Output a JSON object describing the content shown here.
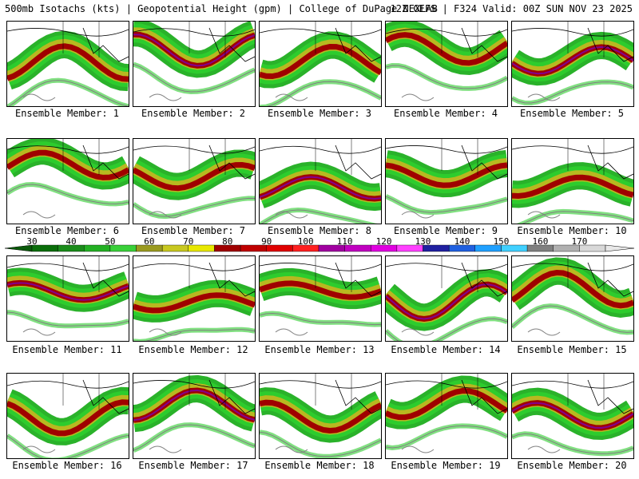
{
  "header": {
    "left": "500mb Isotachs (kts) | Geopotential Height (gpm) | College of DuPage NEXLAB",
    "right": "12Z GEFS | F324 Valid: 00Z SUN NOV 23 2025"
  },
  "colorbar": {
    "labels": [
      "30",
      "40",
      "50",
      "60",
      "70",
      "80",
      "90",
      "100",
      "110",
      "120",
      "130",
      "140",
      "150",
      "160",
      "170"
    ],
    "colors": [
      "#0a6e0a",
      "#1a8c1a",
      "#23b023",
      "#39d039",
      "#9a9a20",
      "#c8c820",
      "#e8e800",
      "#a00000",
      "#c00000",
      "#e00000",
      "#ff2020",
      "#a000a0",
      "#c000c0",
      "#e000e0",
      "#ff40ff",
      "#2020a0",
      "#2060e0",
      "#20a0ff",
      "#40d0ff",
      "#808080",
      "#b0b0b0",
      "#d8d8d8"
    ]
  },
  "members": [
    {
      "label": "Ensemble Member: 1"
    },
    {
      "label": "Ensemble Member: 2"
    },
    {
      "label": "Ensemble Member: 3"
    },
    {
      "label": "Ensemble Member: 4"
    },
    {
      "label": "Ensemble Member: 5"
    },
    {
      "label": "Ensemble Member: 6"
    },
    {
      "label": "Ensemble Member: 7"
    },
    {
      "label": "Ensemble Member: 8"
    },
    {
      "label": "Ensemble Member: 9"
    },
    {
      "label": "Ensemble Member: 10"
    },
    {
      "label": "Ensemble Member: 11"
    },
    {
      "label": "Ensemble Member: 12"
    },
    {
      "label": "Ensemble Member: 13"
    },
    {
      "label": "Ensemble Member: 14"
    },
    {
      "label": "Ensemble Member: 15"
    },
    {
      "label": "Ensemble Member: 16"
    },
    {
      "label": "Ensemble Member: 17"
    },
    {
      "label": "Ensemble Member: 18"
    },
    {
      "label": "Ensemble Member: 19"
    },
    {
      "label": "Ensemble Member: 20"
    }
  ]
}
